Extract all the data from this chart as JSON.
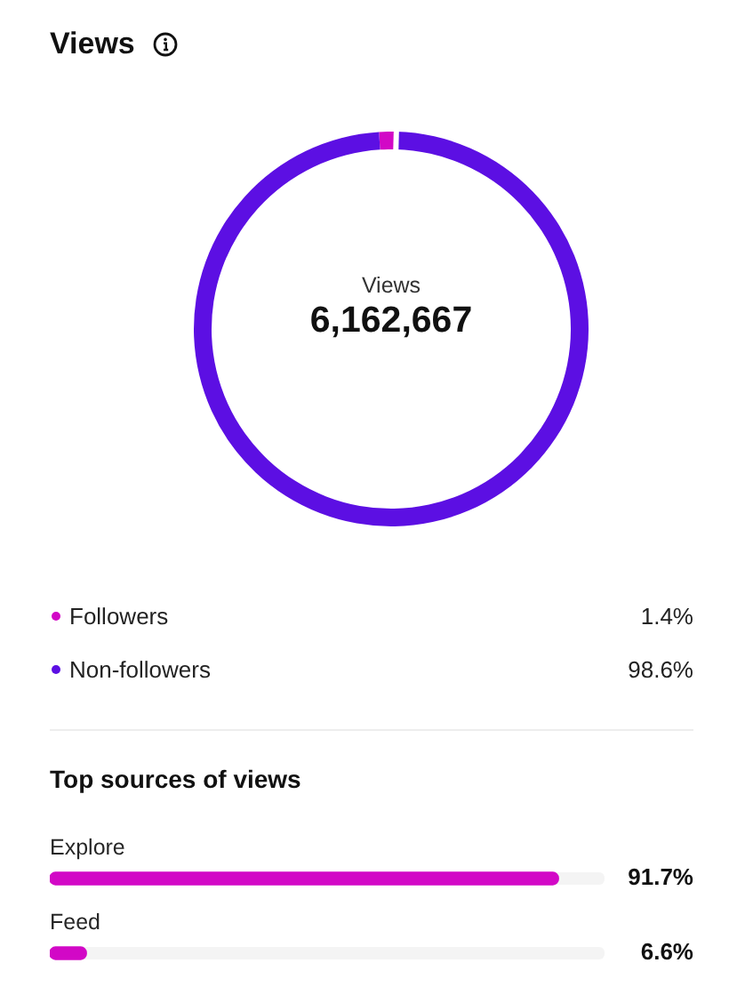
{
  "chart_data": [
    {
      "type": "donut",
      "title": "Views",
      "categories": [
        "Followers",
        "Non-followers"
      ],
      "values": [
        1.4,
        98.6
      ],
      "colors": [
        "#d208c6",
        "#5c0fe3"
      ],
      "value_labels": [
        "1.4%",
        "98.6%"
      ],
      "legend": "bottom",
      "annotations": [
        "Views",
        "6,162,667"
      ]
    },
    {
      "type": "bar",
      "orientation": "horizontal",
      "title": "Top sources of views",
      "categories": [
        "Explore",
        "Feed"
      ],
      "values": [
        91.7,
        6.6
      ],
      "color": "#d208c6",
      "value_labels": [
        "91.7%",
        "6.6%"
      ],
      "xlim": [
        0,
        100
      ],
      "tick_labels": "y"
    }
  ]
}
